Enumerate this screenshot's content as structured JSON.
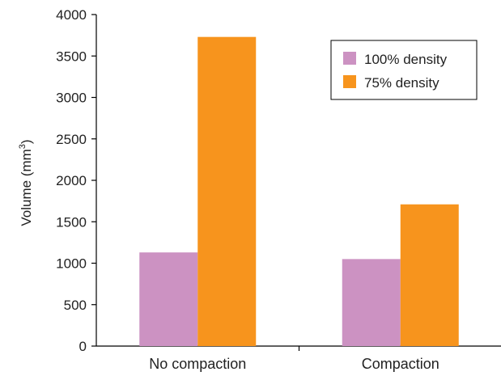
{
  "chart_data": {
    "type": "bar",
    "title": "",
    "xlabel": "",
    "ylabel": "Volume (mm",
    "ylabel_superscript": "3",
    "ylabel_suffix": ")",
    "categories": [
      "No compaction",
      "Compaction"
    ],
    "series": [
      {
        "name": "100% density",
        "color": "#cc92c2",
        "values": [
          1130,
          1050
        ]
      },
      {
        "name": "75% density",
        "color": "#f7941d",
        "values": [
          3730,
          1710
        ]
      }
    ],
    "ylim": [
      0,
      4000
    ],
    "yticks": [
      "0",
      "500",
      "1000",
      "1500",
      "2000",
      "2500",
      "3000",
      "3500",
      "4000"
    ],
    "grid": false,
    "legend_position": "top-right"
  }
}
